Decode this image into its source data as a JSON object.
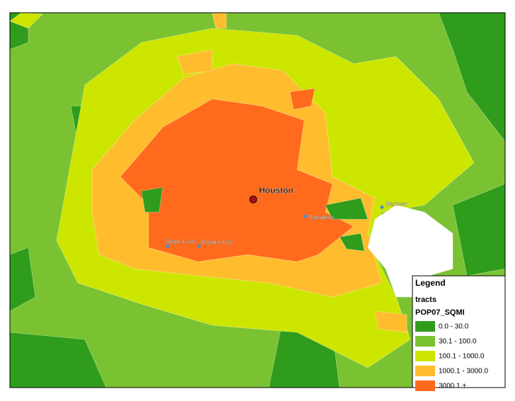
{
  "map": {
    "places": [
      {
        "label": "Houston"
      },
      {
        "label": "Baytown"
      },
      {
        "label": "Pasadena"
      },
      {
        "label": "Sugar Land"
      },
      {
        "label": "Missouri City"
      }
    ]
  },
  "legend": {
    "title": "Legend",
    "layer": "tracts",
    "field": "POP07_SQMI",
    "items": [
      {
        "label": "0.0 - 30.0",
        "color": "#2f9c1c"
      },
      {
        "label": "30.1 - 100.0",
        "color": "#7ac232"
      },
      {
        "label": "100.1 - 1000.0",
        "color": "#cde600"
      },
      {
        "label": "1000.1 - 3000.0",
        "color": "#ffbd2e"
      },
      {
        "label": "3000.1 +",
        "color": "#ff6a1c"
      }
    ]
  }
}
